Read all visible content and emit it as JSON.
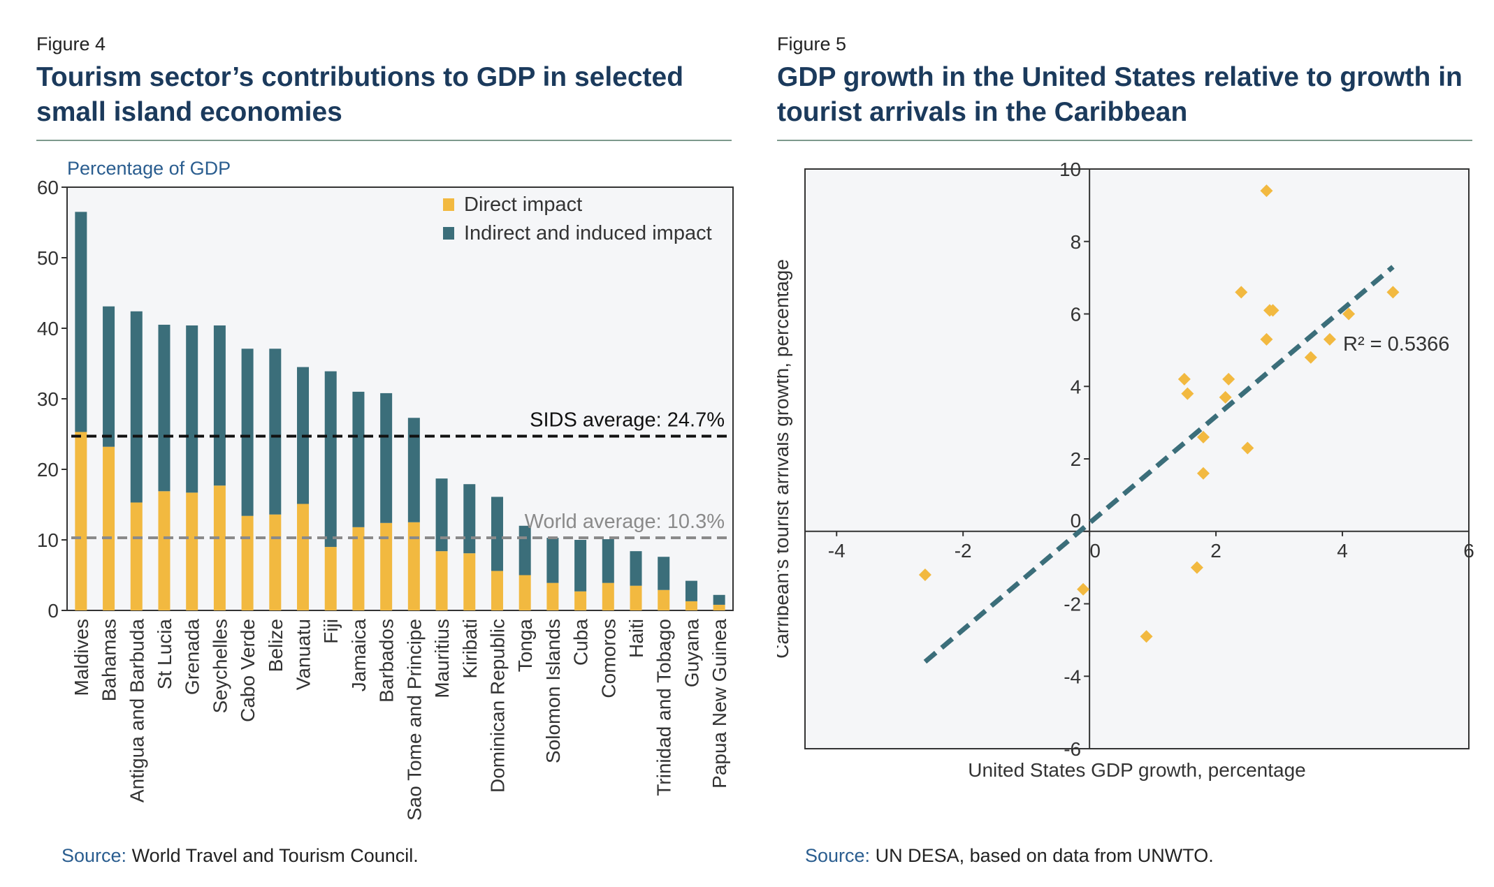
{
  "left": {
    "figure_label": "Figure 4",
    "title": "Tourism sector’s contributions to GDP in selected small island economies",
    "source_key": "Source:",
    "source_text": "World Travel and Tourism Council."
  },
  "right": {
    "figure_label": "Figure 5",
    "title": "GDP growth in the United States relative to growth in tourist arrivals in the Caribbean",
    "source_key": "Source:",
    "source_text": "UN DESA, based on data from UNWTO."
  },
  "chart_data": [
    {
      "type": "bar",
      "stacked": true,
      "ylabel": "Percentage of GDP",
      "ylim": [
        0,
        60
      ],
      "yticks": [
        0,
        10,
        20,
        30,
        40,
        50,
        60
      ],
      "legend_position": "top-right",
      "categories": [
        "Maldives",
        "Bahamas",
        "Antigua and Barbuda",
        "St Lucia",
        "Grenada",
        "Seychelles",
        "Cabo Verde",
        "Belize",
        "Vanuatu",
        "Fiji",
        "Jamaica",
        "Barbados",
        "Sao Tome and Principe",
        "Mauritius",
        "Kiribati",
        "Dominican Republic",
        "Tonga",
        "Solomon Islands",
        "Cuba",
        "Comoros",
        "Haiti",
        "Trinidad and Tobago",
        "Guyana",
        "Papua New Guinea"
      ],
      "series": [
        {
          "name": "Direct impact",
          "color": "#f2b940",
          "values": [
            25.3,
            23.2,
            15.3,
            16.9,
            16.7,
            17.7,
            13.4,
            13.6,
            15.1,
            9.0,
            11.8,
            12.4,
            12.5,
            8.4,
            8.1,
            5.6,
            5.0,
            3.9,
            2.7,
            3.9,
            3.5,
            2.9,
            1.3,
            0.8
          ]
        },
        {
          "name": "Indirect and induced impact",
          "color": "#3b6e7a",
          "values": [
            31.2,
            19.9,
            27.1,
            23.6,
            23.7,
            22.7,
            23.7,
            23.5,
            19.4,
            24.9,
            19.2,
            18.4,
            14.8,
            10.3,
            9.8,
            10.5,
            7.0,
            6.4,
            7.3,
            6.2,
            4.9,
            4.7,
            2.9,
            1.4
          ]
        }
      ],
      "reference_lines": [
        {
          "label": "SIDS average: 24.7%",
          "value": 24.7,
          "color": "#111111"
        },
        {
          "label": "World average: 10.3%",
          "value": 10.3,
          "color": "#8a8a8a"
        }
      ]
    },
    {
      "type": "scatter",
      "xlabel": "United States GDP growth, percentage",
      "ylabel": "Carribean's tourist arrivals growth, percentage",
      "xlim": [
        -4.5,
        6
      ],
      "ylim": [
        -6,
        10
      ],
      "xticks": [
        -4,
        -2,
        0,
        2,
        4,
        6
      ],
      "yticks": [
        -6,
        -4,
        -2,
        0,
        2,
        4,
        6,
        8,
        10
      ],
      "annotation": "R² = 0.5366",
      "point_color": "#f2b940",
      "trend_color": "#3b6e7a",
      "points": [
        {
          "x": 2.8,
          "y": 9.4
        },
        {
          "x": 2.4,
          "y": 6.6
        },
        {
          "x": 2.9,
          "y": 6.1
        },
        {
          "x": 2.85,
          "y": 6.1
        },
        {
          "x": 4.8,
          "y": 6.6
        },
        {
          "x": 4.1,
          "y": 6.0
        },
        {
          "x": 2.8,
          "y": 5.3
        },
        {
          "x": 3.8,
          "y": 5.3
        },
        {
          "x": 3.5,
          "y": 4.8
        },
        {
          "x": 1.5,
          "y": 4.2
        },
        {
          "x": 2.2,
          "y": 4.2
        },
        {
          "x": 1.55,
          "y": 3.8
        },
        {
          "x": 2.15,
          "y": 3.7
        },
        {
          "x": 1.8,
          "y": 2.6
        },
        {
          "x": 2.5,
          "y": 2.3
        },
        {
          "x": 1.8,
          "y": 1.6
        },
        {
          "x": -2.6,
          "y": -1.2
        },
        {
          "x": 1.7,
          "y": -1.0
        },
        {
          "x": -0.1,
          "y": -1.6
        },
        {
          "x": 0.9,
          "y": -2.9
        }
      ],
      "trendline": {
        "x": [
          -2.6,
          4.8
        ],
        "y": [
          -3.6,
          7.3
        ]
      }
    }
  ]
}
